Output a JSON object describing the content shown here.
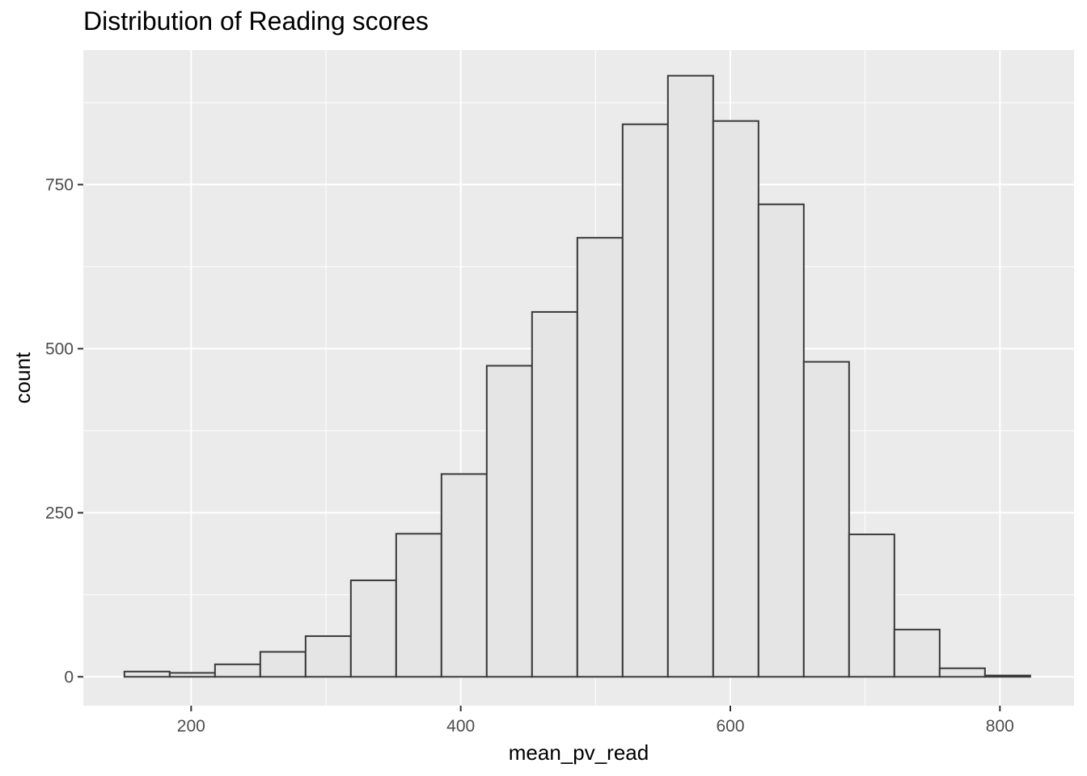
{
  "chart_data": {
    "type": "bar",
    "subtype": "histogram",
    "title": "Distribution of Reading scores",
    "xlabel": "mean_pv_read",
    "ylabel": "count",
    "bin_width": 33.6,
    "bin_start": 150.5,
    "values": [
      8,
      6,
      19,
      38,
      62,
      147,
      218,
      309,
      474,
      556,
      669,
      842,
      916,
      847,
      720,
      480,
      217,
      72,
      13,
      2
    ],
    "xlim": [
      120,
      855
    ],
    "ylim": [
      -44,
      955
    ],
    "x_ticks": [
      200,
      400,
      600,
      800
    ],
    "y_ticks": [
      0,
      250,
      500,
      750
    ],
    "grid": true,
    "panel_color": "#ebebeb",
    "bar_fill": "#e5e5e5",
    "bar_stroke": "#3a3a3a"
  }
}
